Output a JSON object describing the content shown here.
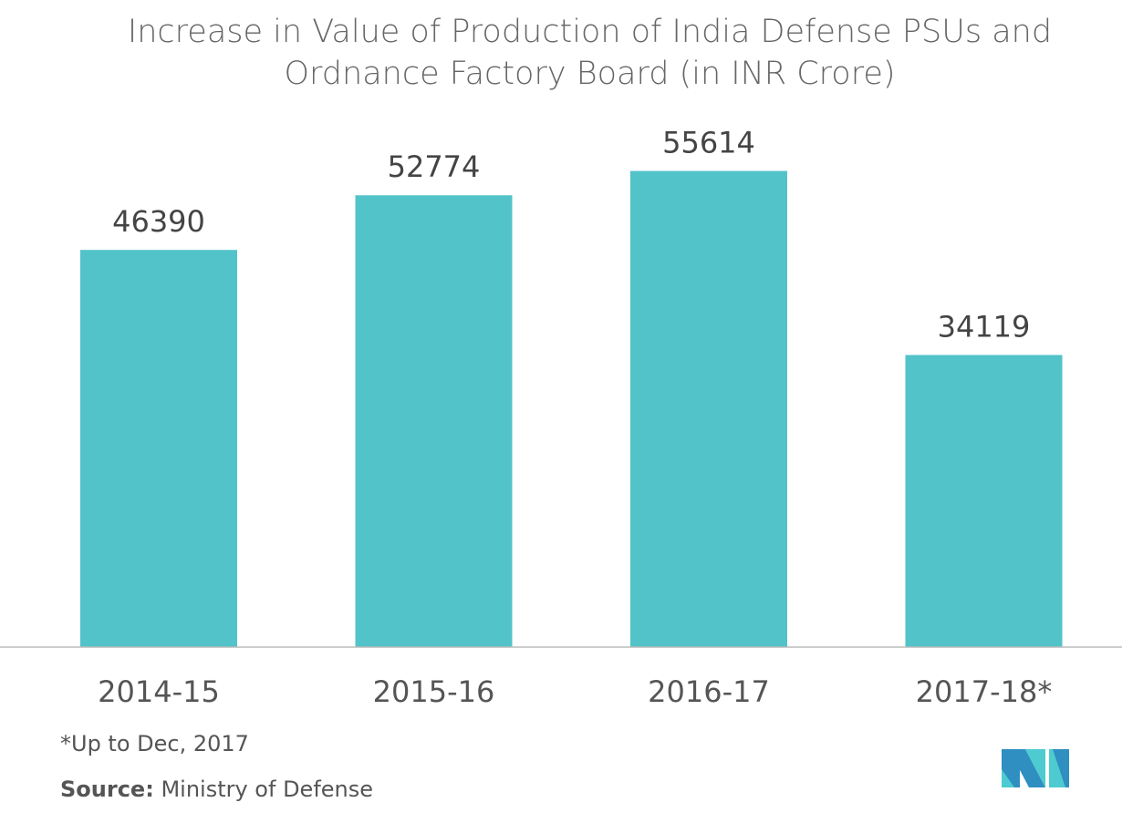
{
  "chart_data": {
    "type": "bar",
    "title": "Increase in Value of Production of India Defense PSUs and Ordnance Factory Board (in INR Crore)",
    "categories": [
      "2014-15",
      "2015-16",
      "2016-17",
      "2017-18*"
    ],
    "values": [
      46390,
      52774,
      55614,
      34119
    ],
    "xlabel": "",
    "ylabel": "",
    "ylim": [
      0,
      66000
    ],
    "grid": false,
    "bar_color": "#52c3c9"
  },
  "footnote": "*Up to Dec, 2017",
  "source": {
    "label": "Source:",
    "text": "Ministry of Defense"
  },
  "logo_colors": [
    "#2e8fc0",
    "#4dcbd0"
  ]
}
